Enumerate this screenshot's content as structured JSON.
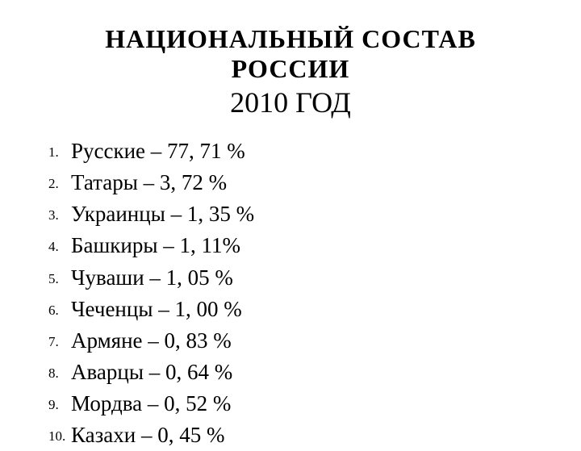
{
  "title": "НАЦИОНАЛЬНЫЙ СОСТАВ РОССИИ",
  "subtitle_year": "2010",
  "subtitle_word": " ГОД",
  "items": [
    {
      "num": "1.",
      "text": "Русские – 77, 71 %"
    },
    {
      "num": "2.",
      "text": "Татары – 3, 72 %"
    },
    {
      "num": "3.",
      "text": "Украинцы – 1, 35 %"
    },
    {
      "num": "4.",
      "text": "Башкиры – 1, 11%"
    },
    {
      "num": "5.",
      "text": "Чуваши – 1, 05 %"
    },
    {
      "num": "6.",
      "text": "Чеченцы – 1, 00 %"
    },
    {
      "num": "7.",
      "text": "Армяне – 0, 83 %"
    },
    {
      "num": "8.",
      "text": "Аварцы – 0, 64 %"
    },
    {
      "num": "9.",
      "text": "Мордва – 0, 52 %"
    },
    {
      "num": "10.",
      "text": "Казахи – 0, 45 %"
    }
  ],
  "styling": {
    "background_color": "#ffffff",
    "text_color": "#000000",
    "title_fontsize": 32,
    "subtitle_fontsize": 36,
    "list_fontsize": 27,
    "list_number_fontsize": 17,
    "font_family": "Georgia, Times New Roman, serif"
  }
}
